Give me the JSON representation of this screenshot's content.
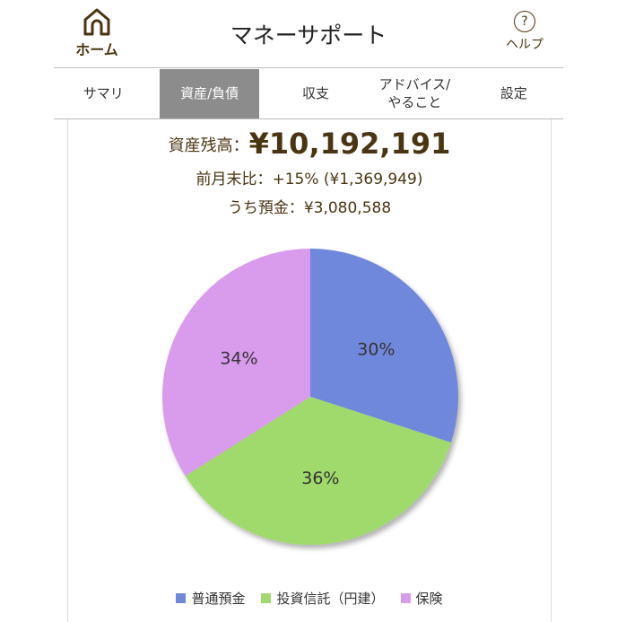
{
  "header": {
    "home_label": "ホーム",
    "title": "マネーサポート",
    "help_label": "ヘルプ"
  },
  "tabs": [
    {
      "label": "サマリ"
    },
    {
      "label": "資産/負債",
      "active": true
    },
    {
      "label": "収支"
    },
    {
      "label": "アドバイス/\nやること"
    },
    {
      "label": "設定"
    }
  ],
  "summary": {
    "balance_label": "資産残高：",
    "balance_value": "¥10,192,191",
    "change": "前月末比：+15% (¥1,369,949)",
    "deposit": "うち預金：¥3,080,588"
  },
  "chart_data": {
    "type": "pie",
    "categories": [
      "普通預金",
      "投資信託（円建）",
      "保険"
    ],
    "values": [
      30,
      36,
      34
    ],
    "labels": [
      "30%",
      "36%",
      "34%"
    ],
    "colors": [
      "#6f88dc",
      "#a0d96c",
      "#d99cec"
    ],
    "legend": "bottom"
  }
}
